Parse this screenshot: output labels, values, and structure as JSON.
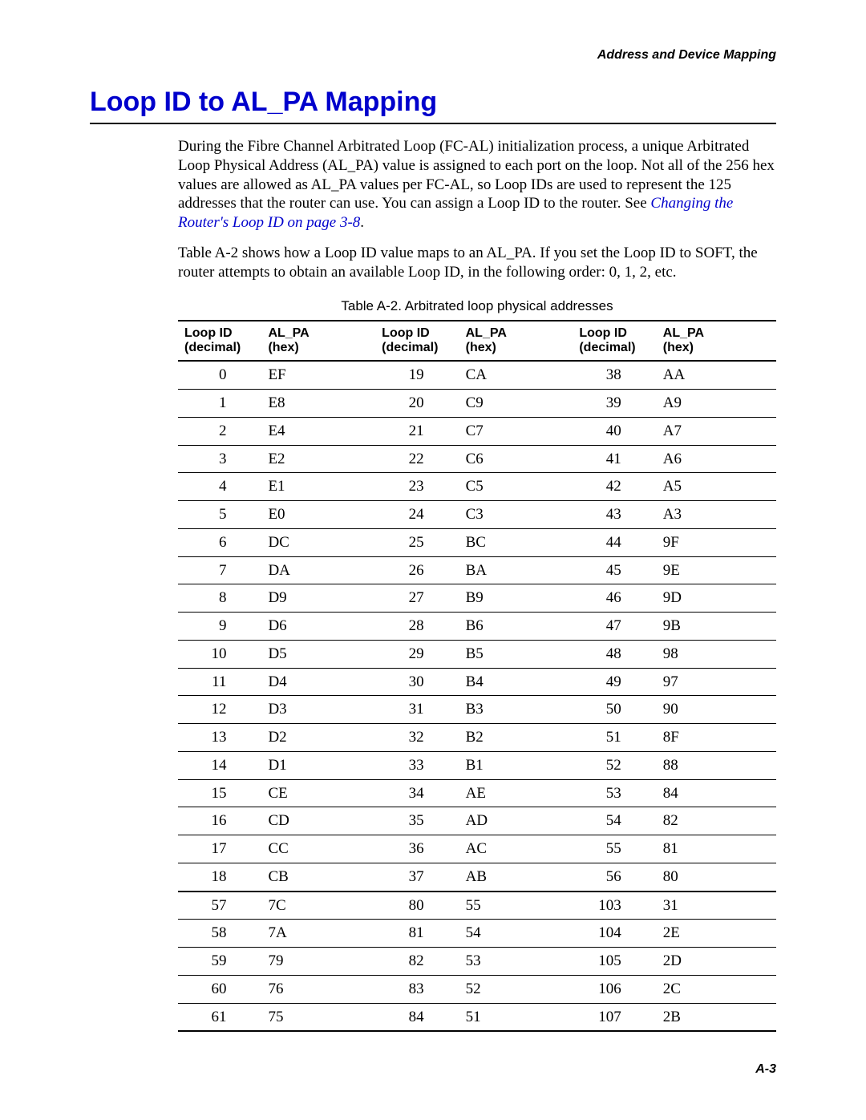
{
  "header": {
    "right": "Address and Device Mapping"
  },
  "title": "Loop ID to AL_PA Mapping",
  "para1_a": "During the Fibre Channel Arbitrated Loop (FC-AL) initialization process, a unique Arbitrated Loop Physical Address (AL_PA) value is assigned to each port on the loop. Not all of the 256 hex values are allowed as AL_PA values per FC-AL, so Loop IDs are used to represent the 125 addresses that the router can use. You can assign a Loop ID to the router. See ",
  "para1_link": "Changing the Router's Loop ID on page 3-8",
  "para1_b": ".",
  "para2": "Table A-2 shows how a Loop ID value maps to an AL_PA. If you set the Loop ID to SOFT, the router attempts to obtain an available Loop ID, in the following order: 0, 1, 2, etc.",
  "table": {
    "caption": "Table A-2. Arbitrated loop physical addresses",
    "col_header_loop_l1": "Loop ID",
    "col_header_loop_l2": "(decimal)",
    "col_header_alpa_l1": "AL_PA",
    "col_header_alpa_l2": "(hex)",
    "section1_rows": [
      [
        "0",
        "EF",
        "19",
        "CA",
        "38",
        "AA"
      ],
      [
        "1",
        "E8",
        "20",
        "C9",
        "39",
        "A9"
      ],
      [
        "2",
        "E4",
        "21",
        "C7",
        "40",
        "A7"
      ],
      [
        "3",
        "E2",
        "22",
        "C6",
        "41",
        "A6"
      ],
      [
        "4",
        "E1",
        "23",
        "C5",
        "42",
        "A5"
      ],
      [
        "5",
        "E0",
        "24",
        "C3",
        "43",
        "A3"
      ],
      [
        "6",
        "DC",
        "25",
        "BC",
        "44",
        "9F"
      ],
      [
        "7",
        "DA",
        "26",
        "BA",
        "45",
        "9E"
      ],
      [
        "8",
        "D9",
        "27",
        "B9",
        "46",
        "9D"
      ],
      [
        "9",
        "D6",
        "28",
        "B6",
        "47",
        "9B"
      ],
      [
        "10",
        "D5",
        "29",
        "B5",
        "48",
        "98"
      ],
      [
        "11",
        "D4",
        "30",
        "B4",
        "49",
        "97"
      ],
      [
        "12",
        "D3",
        "31",
        "B3",
        "50",
        "90"
      ],
      [
        "13",
        "D2",
        "32",
        "B2",
        "51",
        "8F"
      ],
      [
        "14",
        "D1",
        "33",
        "B1",
        "52",
        "88"
      ],
      [
        "15",
        "CE",
        "34",
        "AE",
        "53",
        "84"
      ],
      [
        "16",
        "CD",
        "35",
        "AD",
        "54",
        "82"
      ],
      [
        "17",
        "CC",
        "36",
        "AC",
        "55",
        "81"
      ],
      [
        "18",
        "CB",
        "37",
        "AB",
        "56",
        "80"
      ]
    ],
    "section2_rows": [
      [
        "57",
        "7C",
        "80",
        "55",
        "103",
        "31"
      ],
      [
        "58",
        "7A",
        "81",
        "54",
        "104",
        "2E"
      ],
      [
        "59",
        "79",
        "82",
        "53",
        "105",
        "2D"
      ],
      [
        "60",
        "76",
        "83",
        "52",
        "106",
        "2C"
      ],
      [
        "61",
        "75",
        "84",
        "51",
        "107",
        "2B"
      ]
    ]
  },
  "footer": {
    "right": "A-3"
  }
}
